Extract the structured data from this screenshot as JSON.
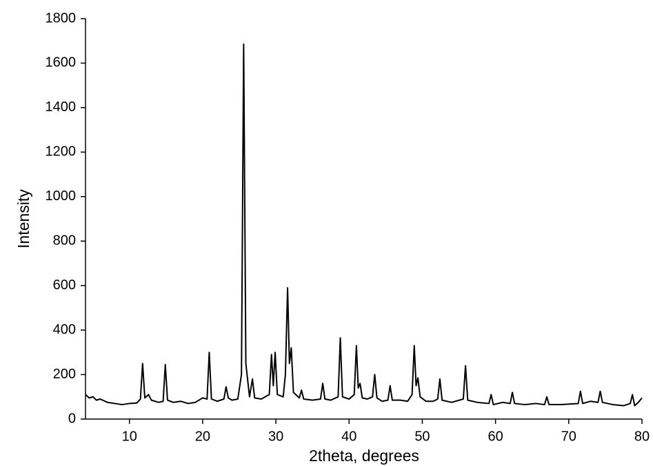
{
  "chart_data": {
    "type": "line",
    "x_label": "2theta, degrees",
    "y_label": "Intensity",
    "color": "#000000",
    "x": [
      4,
      4.5,
      5,
      5.5,
      6,
      7,
      8,
      9,
      10,
      11,
      11.5,
      11.8,
      12.1,
      12.6,
      13,
      14,
      14.6,
      14.9,
      15.2,
      16,
      17,
      18,
      19,
      20,
      20.6,
      20.9,
      21.2,
      22,
      22.9,
      23.2,
      23.5,
      24,
      24.8,
      25.3,
      25.6,
      25.9,
      26.4,
      26.8,
      27.1,
      28,
      29.1,
      29.4,
      29.65,
      29.9,
      30.2,
      31,
      31.3,
      31.6,
      31.85,
      32.1,
      32.4,
      33.2,
      33.5,
      33.8,
      35,
      36.1,
      36.4,
      36.7,
      37.5,
      38.5,
      38.8,
      39.1,
      40,
      40.7,
      41,
      41.25,
      41.5,
      41.8,
      42.5,
      43.2,
      43.5,
      43.8,
      44.5,
      45.3,
      45.6,
      45.9,
      47,
      48,
      48.6,
      48.9,
      49.15,
      49.4,
      49.7,
      50.5,
      51.5,
      52.1,
      52.4,
      52.7,
      54,
      55.6,
      55.9,
      56.2,
      57.5,
      59.1,
      59.4,
      59.7,
      61,
      62,
      62.3,
      62.6,
      64,
      65.5,
      66.7,
      67,
      67.3,
      69,
      71.3,
      71.6,
      71.9,
      73,
      74,
      74.3,
      74.6,
      76,
      77.5,
      78.4,
      78.7,
      79,
      79.5,
      80
    ],
    "values": [
      110,
      95,
      100,
      85,
      90,
      75,
      70,
      65,
      70,
      72,
      90,
      250,
      95,
      110,
      85,
      75,
      80,
      245,
      85,
      75,
      80,
      70,
      75,
      95,
      90,
      300,
      90,
      80,
      90,
      145,
      95,
      85,
      90,
      200,
      1685,
      250,
      100,
      180,
      95,
      90,
      110,
      290,
      150,
      300,
      110,
      100,
      200,
      590,
      250,
      320,
      120,
      95,
      130,
      90,
      85,
      90,
      160,
      90,
      85,
      100,
      365,
      100,
      90,
      110,
      330,
      140,
      160,
      95,
      90,
      100,
      200,
      95,
      80,
      85,
      150,
      85,
      85,
      80,
      110,
      330,
      150,
      185,
      100,
      80,
      80,
      90,
      180,
      85,
      75,
      90,
      240,
      85,
      75,
      70,
      110,
      65,
      75,
      70,
      120,
      70,
      65,
      70,
      65,
      100,
      65,
      65,
      70,
      125,
      70,
      80,
      75,
      125,
      75,
      65,
      60,
      70,
      110,
      60,
      75,
      95
    ],
    "xlim": [
      4,
      80
    ],
    "xticks": [
      10,
      20,
      30,
      40,
      50,
      60,
      70,
      80
    ],
    "ylim": [
      0,
      1800
    ],
    "yticks": [
      0,
      200,
      400,
      600,
      800,
      1000,
      1200,
      1400,
      1600,
      1800
    ]
  }
}
